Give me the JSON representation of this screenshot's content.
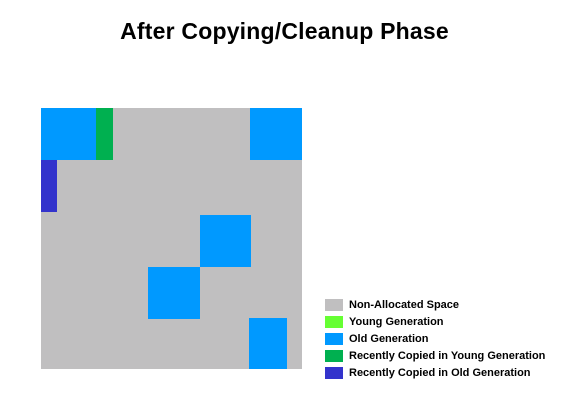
{
  "title": "After Copying/Cleanup Phase",
  "colors": {
    "non_allocated": "#c0bfc0",
    "young": "#66ff33",
    "old": "#0099ff",
    "recent_young": "#00b050",
    "recent_old": "#3333cc"
  },
  "legend": [
    {
      "label": "Non-Allocated Space",
      "color": "#c0bfc0"
    },
    {
      "label": "Young Generation",
      "color": "#66ff33"
    },
    {
      "label": "Old Generation",
      "color": "#0099ff"
    },
    {
      "label": "Recently Copied in Young Generation",
      "color": "#00b050"
    },
    {
      "label": "Recently Copied in Old Generation",
      "color": "#3333cc"
    }
  ]
}
